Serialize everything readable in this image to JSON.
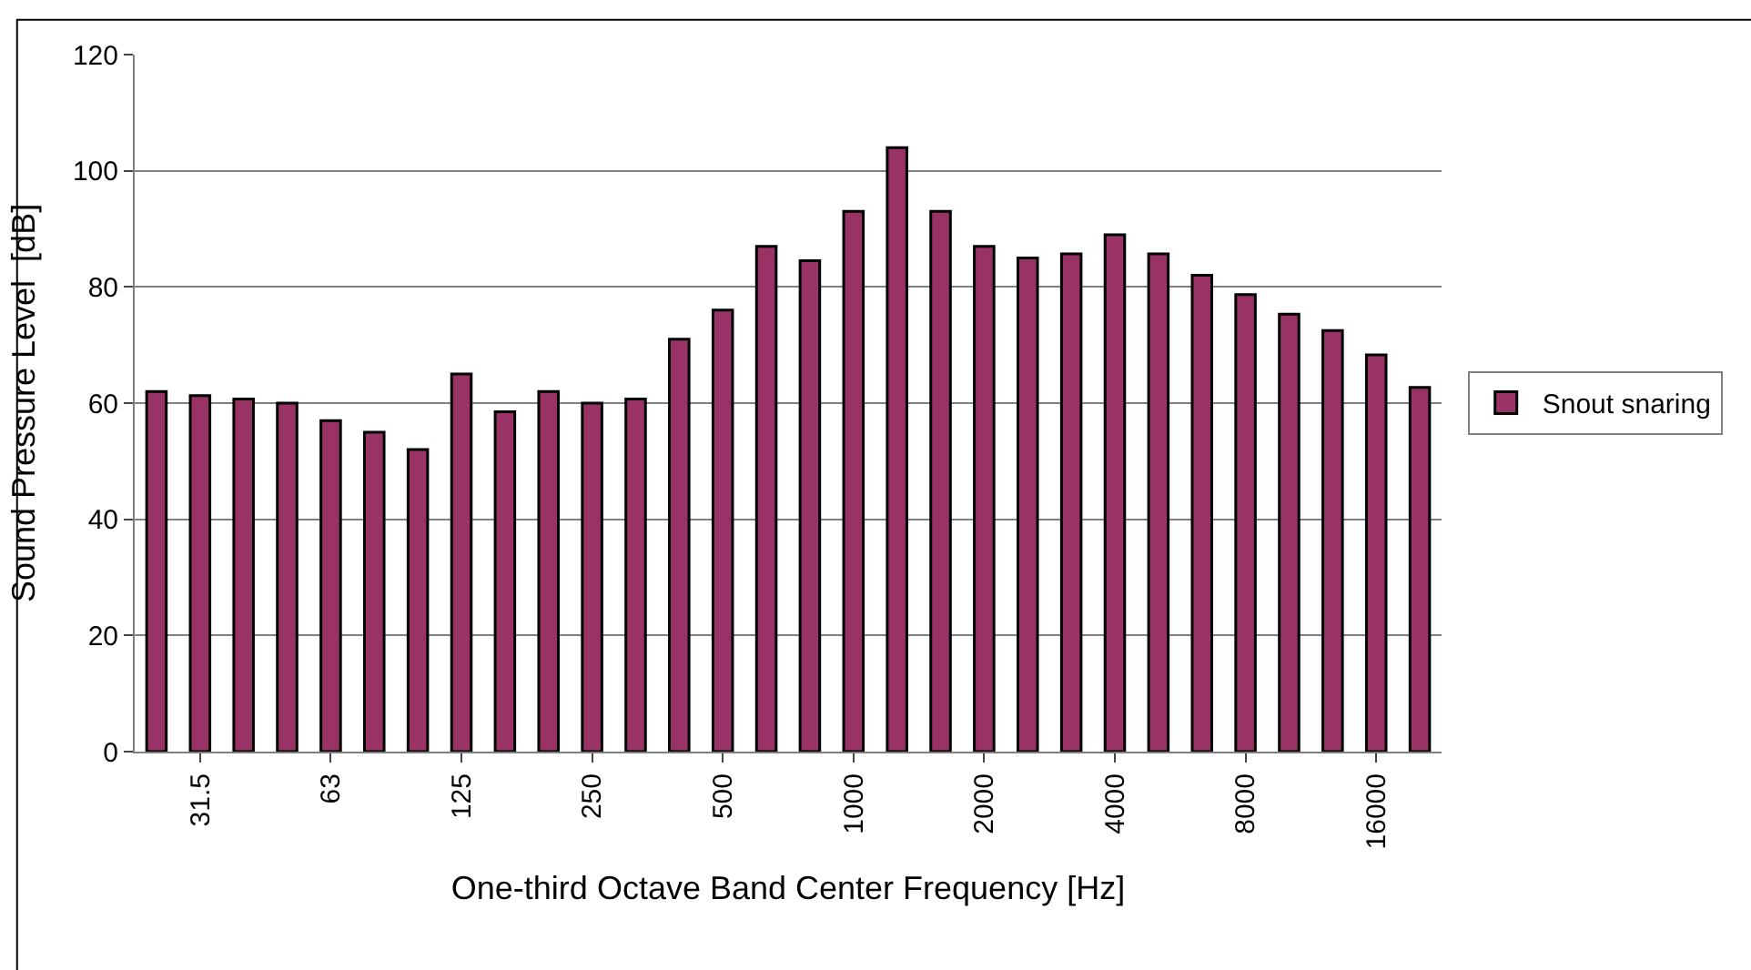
{
  "chart_data": {
    "type": "bar",
    "xlabel": "One-third Octave Band Center Frequency [Hz]",
    "ylabel": "Sound Pressure Level  [dB]",
    "categories": [
      null,
      "31.5",
      null,
      null,
      "63",
      null,
      null,
      "125",
      null,
      null,
      "250",
      null,
      null,
      "500",
      null,
      null,
      "1000",
      null,
      null,
      "2000",
      null,
      null,
      "4000",
      null,
      null,
      "8000",
      null,
      null,
      "16000",
      null
    ],
    "series": [
      {
        "name": "Snout snaring",
        "color": "#993366",
        "values": [
          62,
          61.3,
          60.7,
          60,
          57,
          55,
          52,
          65,
          58.5,
          62,
          60,
          60.7,
          71,
          76,
          87,
          84.5,
          93,
          104,
          93,
          87,
          85,
          85.7,
          89,
          85.7,
          82,
          78.7,
          75.3,
          72.5,
          68.3,
          62.7
        ]
      }
    ],
    "ylim": [
      0,
      120
    ],
    "yticks": [
      0,
      20,
      40,
      60,
      80,
      100,
      120
    ],
    "grid": "y",
    "legend": "right"
  }
}
